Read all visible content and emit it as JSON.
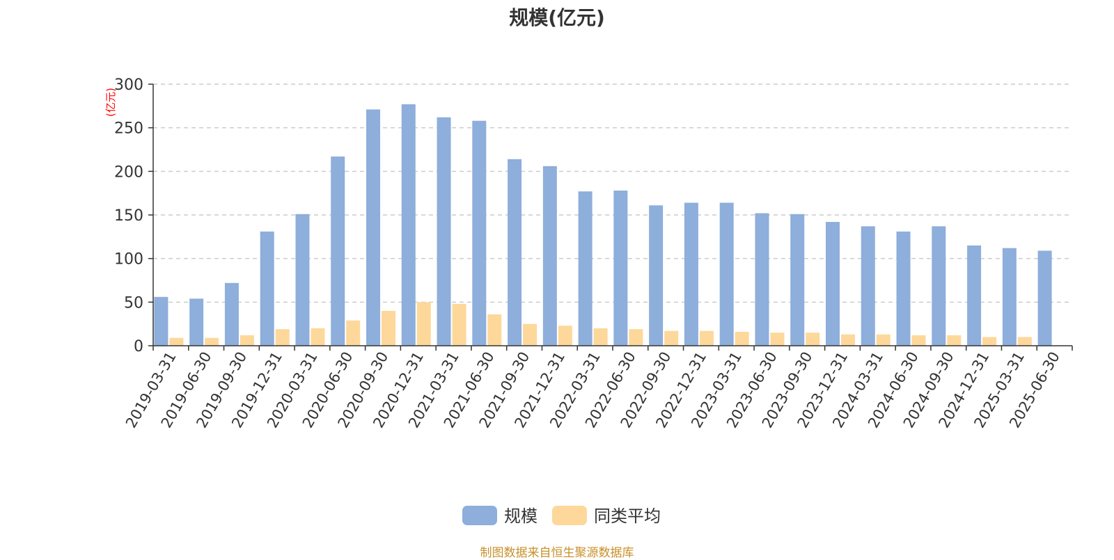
{
  "chart_data": {
    "type": "bar",
    "title": "规模(亿元)",
    "ylabel": "(亿元)",
    "xlabel": "",
    "ylim": [
      0,
      300
    ],
    "yticks": [
      "0",
      "50",
      "100",
      "150",
      "200",
      "250",
      "300"
    ],
    "grid": true,
    "legend_position": "bottom-center",
    "categories": [
      "2019-03-31",
      "2019-06-30",
      "2019-09-30",
      "2019-12-31",
      "2020-03-31",
      "2020-06-30",
      "2020-09-30",
      "2020-12-31",
      "2021-03-31",
      "2021-06-30",
      "2021-09-30",
      "2021-12-31",
      "2022-03-31",
      "2022-06-30",
      "2022-09-30",
      "2022-12-31",
      "2023-03-31",
      "2023-06-30",
      "2023-09-30",
      "2023-12-31",
      "2024-03-31",
      "2024-06-30",
      "2024-09-30",
      "2024-12-31",
      "2025-03-31",
      "2025-06-30"
    ],
    "series": [
      {
        "name": "规模",
        "color": "#8eaedb",
        "values": [
          56,
          54,
          72,
          131,
          151,
          217,
          271,
          277,
          262,
          258,
          214,
          206,
          177,
          178,
          161,
          164,
          164,
          152,
          151,
          142,
          137,
          131,
          137,
          115,
          112,
          109
        ]
      },
      {
        "name": "同类平均",
        "color": "#fdd89a",
        "values": [
          9,
          9,
          12,
          19,
          20,
          29,
          40,
          50,
          48,
          36,
          25,
          23,
          20,
          19,
          17,
          17,
          16,
          15,
          15,
          13,
          13,
          12,
          12,
          10,
          10,
          null
        ]
      }
    ]
  },
  "footer": {
    "source": "制图数据来自恒生聚源数据库"
  }
}
